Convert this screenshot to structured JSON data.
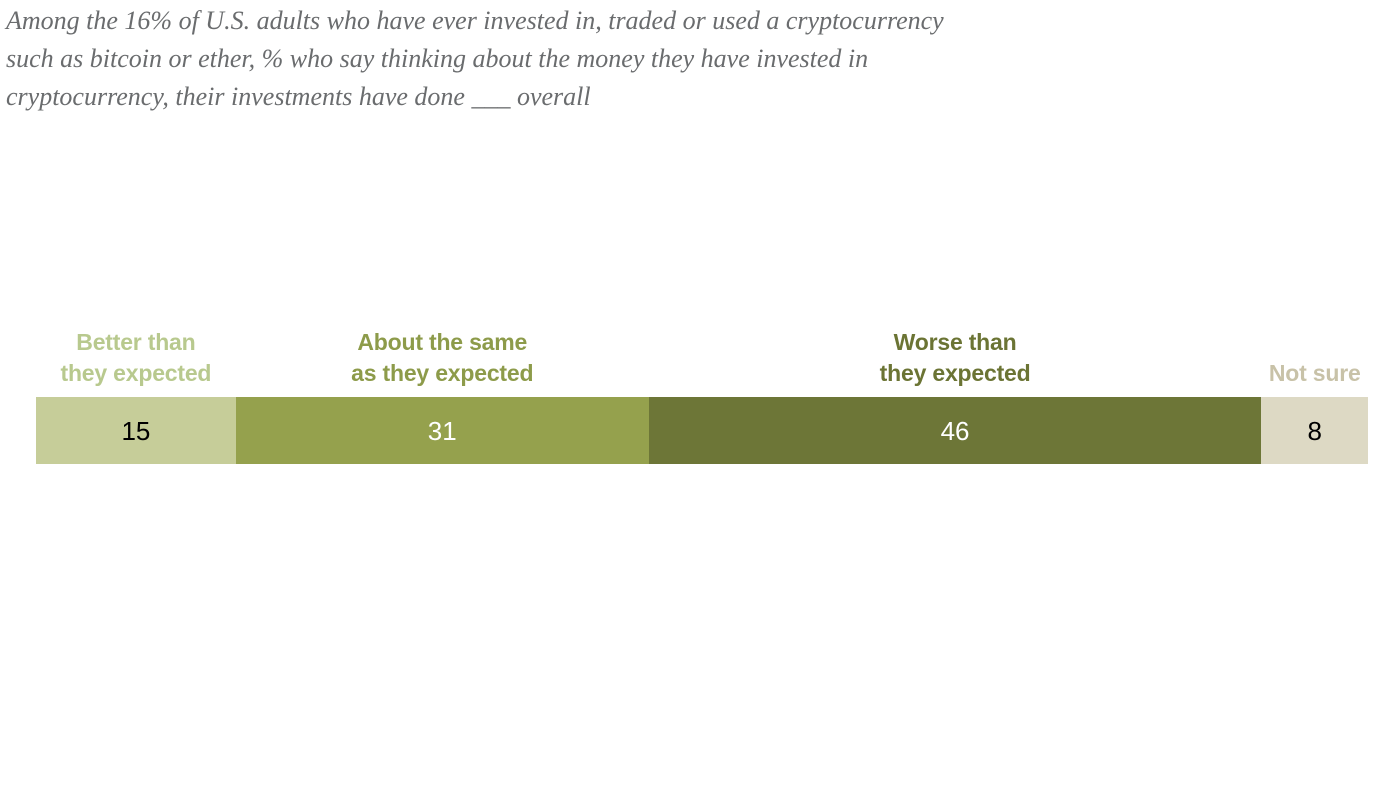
{
  "title": "Among the 16% of U.S. adults who have ever invested in, traded or used a cryptocurrency\nsuch as bitcoin or ether, % who say thinking about the money they have invested in\ncryptocurrency, their investments have done ___ overall",
  "chart_data": {
    "type": "bar",
    "subtype": "horizontal-stacked",
    "unit": "percent",
    "total": 100,
    "grid": false,
    "legend_position": "labels-above-segments",
    "categories": [
      "Better than they expected",
      "About the same as they expected",
      "Worse than they expected",
      "Not sure"
    ],
    "values": [
      15,
      31,
      46,
      8
    ],
    "segments": [
      {
        "label": "Better than\nthey expected",
        "value": 15,
        "fill": "#c6cd99",
        "label_color": "#b8c98e",
        "value_color": "#000000"
      },
      {
        "label": "About the same\nas they expected",
        "value": 31,
        "fill": "#95a14d",
        "label_color": "#8d9b4a",
        "value_color": "#ffffff"
      },
      {
        "label": "Worse than\nthey expected",
        "value": 46,
        "fill": "#6d7637",
        "label_color": "#6b7434",
        "value_color": "#ffffff"
      },
      {
        "label": "Not sure",
        "value": 8,
        "fill": "#ddd9c4",
        "label_color": "#c8c2a8",
        "value_color": "#000000"
      }
    ]
  }
}
